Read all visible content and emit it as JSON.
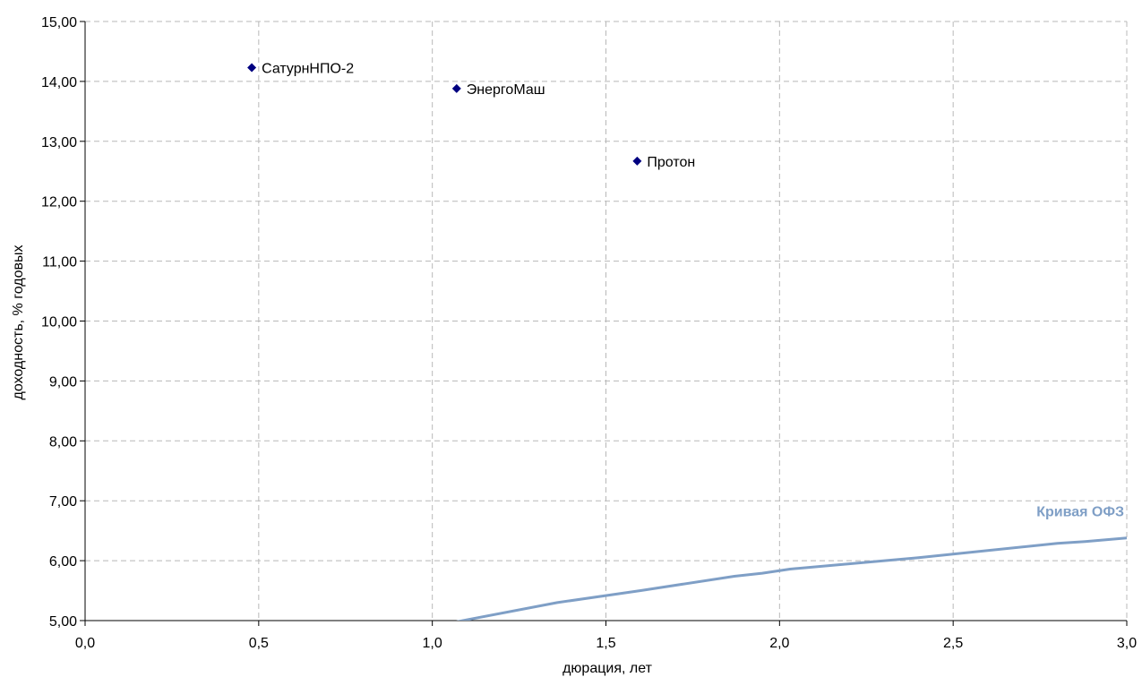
{
  "chart_data": {
    "type": "scatter",
    "title": "",
    "xlabel": "дюрация, лет",
    "ylabel": "доходность, % годовых",
    "xlim": [
      0,
      3
    ],
    "ylim": [
      5,
      15
    ],
    "grid": true,
    "x_ticks": [
      "0,0",
      "0,5",
      "1,0",
      "1,5",
      "2,0",
      "2,5",
      "3,0"
    ],
    "y_ticks": [
      "5,00",
      "6,00",
      "7,00",
      "8,00",
      "9,00",
      "10,00",
      "11,00",
      "12,00",
      "13,00",
      "14,00",
      "15,00"
    ],
    "series": [
      {
        "kind": "scatter",
        "color": "#000080",
        "marker": "diamond",
        "points": [
          {
            "label": "СатурнНПО-2",
            "x": 0.48,
            "y": 14.23
          },
          {
            "label": "ЭнергоМаш",
            "x": 1.07,
            "y": 13.88
          },
          {
            "label": "Протон",
            "x": 1.59,
            "y": 12.67
          }
        ]
      },
      {
        "kind": "line",
        "name": "Кривая ОФЗ",
        "color": "#7f9fc6",
        "points": [
          {
            "x": 1.07,
            "y": 4.98
          },
          {
            "x": 1.36,
            "y": 5.3
          },
          {
            "x": 1.6,
            "y": 5.5
          },
          {
            "x": 1.87,
            "y": 5.74
          },
          {
            "x": 1.95,
            "y": 5.79
          },
          {
            "x": 2.03,
            "y": 5.86
          },
          {
            "x": 2.4,
            "y": 6.05
          },
          {
            "x": 2.8,
            "y": 6.29
          },
          {
            "x": 2.88,
            "y": 6.32
          },
          {
            "x": 3.0,
            "y": 6.38
          }
        ]
      }
    ]
  }
}
